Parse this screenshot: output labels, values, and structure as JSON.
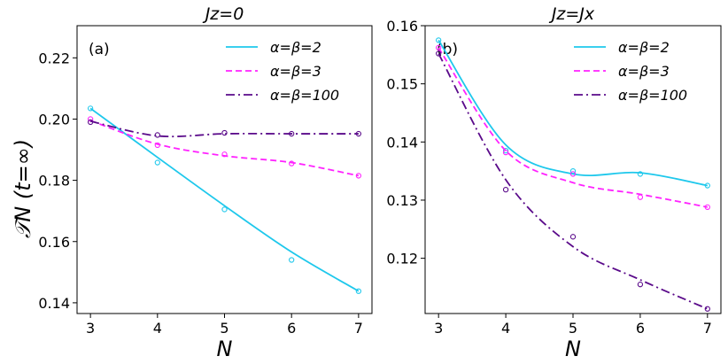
{
  "ylabel": "𝒯N (t=∞)",
  "chart_data": [
    {
      "type": "line",
      "panel": "(a)",
      "title": "Jz=0",
      "xlabel": "N",
      "ylabel": "𝒯N (t=∞)",
      "x": [
        3,
        4,
        5,
        6,
        7
      ],
      "xlim": [
        2.8,
        7.2
      ],
      "ylim": [
        0.1365,
        0.2305
      ],
      "xticks": [
        3,
        4,
        5,
        6,
        7
      ],
      "yticks": [
        0.14,
        0.16,
        0.18,
        0.2,
        0.22
      ],
      "ytick_labels": [
        "0.14",
        "0.16",
        "0.18",
        "0.20",
        "0.22"
      ],
      "legend_position": "top-right",
      "grid": false,
      "series": [
        {
          "name": "α=β=2",
          "color": "#1ec8ec",
          "dash": "solid",
          "points": [
            0.2035,
            0.1858,
            0.1705,
            0.154,
            0.1438
          ],
          "fit": [
            0.2035,
            0.1875,
            0.1717,
            0.1566,
            0.1438
          ]
        },
        {
          "name": "α=β=3",
          "color": "#ff22ff",
          "dash": "dashed",
          "points": [
            0.2,
            0.1915,
            0.1885,
            0.1855,
            0.1815
          ],
          "fit": [
            0.1995,
            0.1918,
            0.188,
            0.1858,
            0.1815
          ]
        },
        {
          "name": "α=β=100",
          "color": "#5a0a8a",
          "dash": "dashdot",
          "points": [
            0.199,
            0.1948,
            0.1955,
            0.1952,
            0.1952
          ],
          "fit": [
            0.1993,
            0.1945,
            0.1952,
            0.1952,
            0.1952
          ]
        }
      ]
    },
    {
      "type": "line",
      "panel": "(b)",
      "title": "Jz=Jx",
      "xlabel": "N",
      "ylabel": "",
      "x": [
        3,
        4,
        5,
        6,
        7
      ],
      "xlim": [
        2.8,
        7.2
      ],
      "ylim": [
        0.1105,
        0.16
      ],
      "xticks": [
        3,
        4,
        5,
        6,
        7
      ],
      "yticks": [
        0.12,
        0.13,
        0.14,
        0.15,
        0.16
      ],
      "ytick_labels": [
        "0.12",
        "0.13",
        "0.14",
        "0.15",
        "0.16"
      ],
      "legend_position": "top-right",
      "grid": false,
      "series": [
        {
          "name": "α=β=2",
          "color": "#1ec8ec",
          "dash": "solid",
          "points": [
            0.1575,
            0.1385,
            0.135,
            0.1345,
            0.1325
          ],
          "fit": [
            0.1575,
            0.1395,
            0.1345,
            0.1347,
            0.1325
          ]
        },
        {
          "name": "α=β=3",
          "color": "#ff22ff",
          "dash": "dashed",
          "points": [
            0.1562,
            0.1382,
            0.1345,
            0.1305,
            0.1288
          ],
          "fit": [
            0.1562,
            0.1385,
            0.133,
            0.131,
            0.1288
          ]
        },
        {
          "name": "α=β=100",
          "color": "#5a0a8a",
          "dash": "dashdot",
          "points": [
            0.1552,
            0.1318,
            0.1237,
            0.1155,
            0.1113
          ],
          "fit": [
            0.1552,
            0.1335,
            0.122,
            0.1163,
            0.1113
          ]
        }
      ]
    }
  ]
}
